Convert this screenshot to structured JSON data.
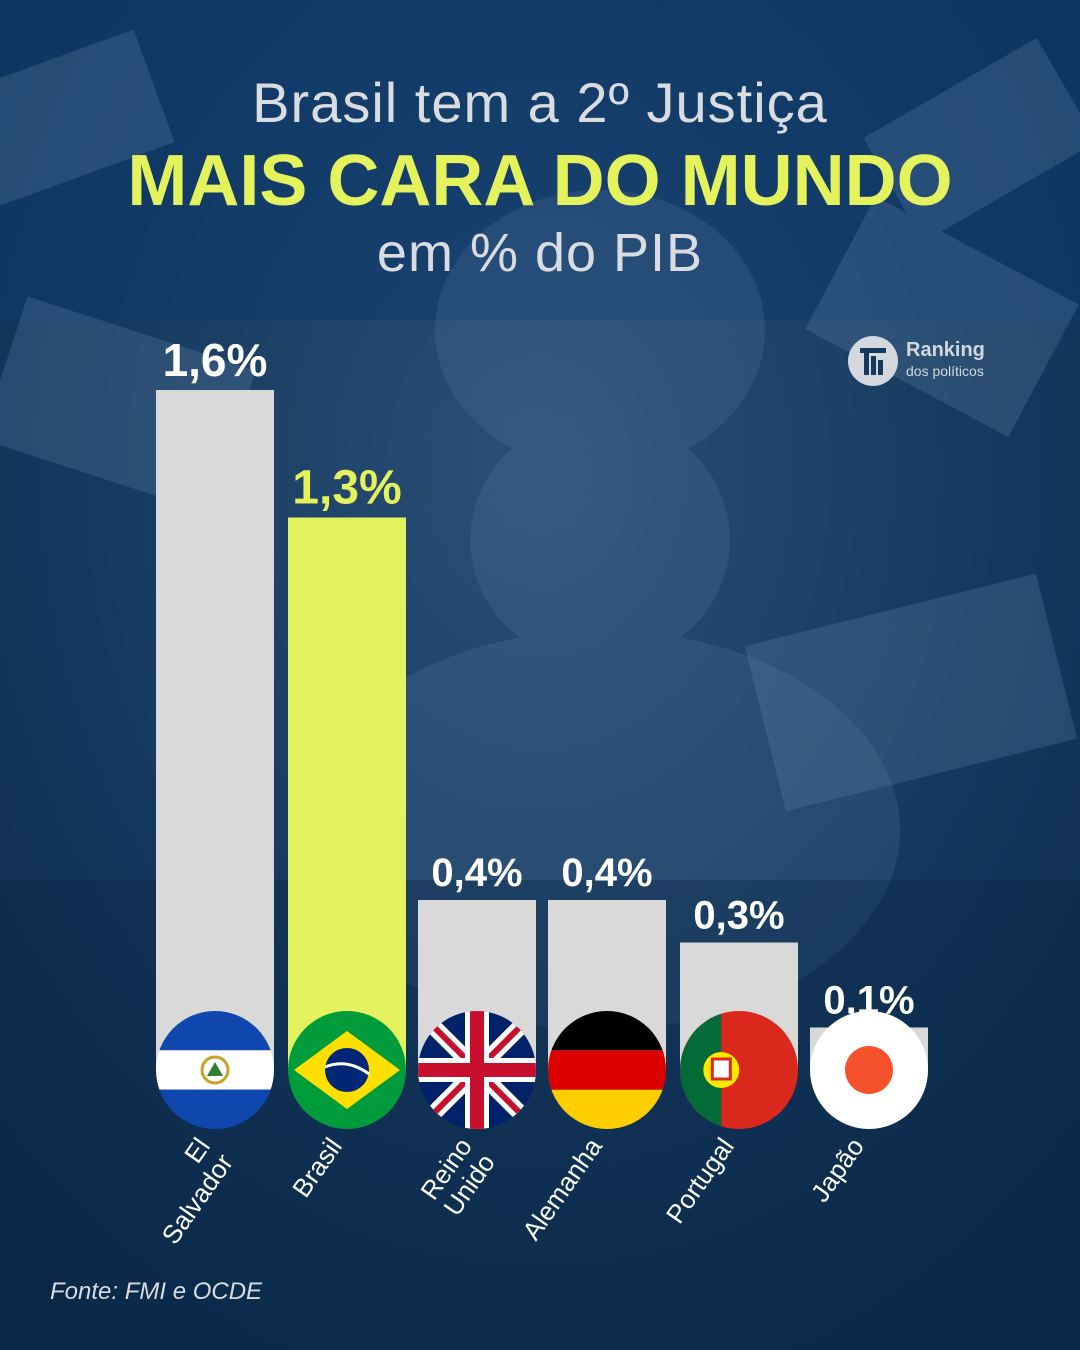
{
  "title": {
    "line1": "Brasil tem a 2º Justiça",
    "line2": "MAIS CARA DO MUNDO",
    "line3": "em % do PIB"
  },
  "logo": {
    "name": "Ranking",
    "subtitle": "dos políticos"
  },
  "source": "Fonte: FMI e OCDE",
  "colors": {
    "background": "#0f3762",
    "bar": "#d9d9d9",
    "highlight": "#e4f25e",
    "text": "#ffffff"
  },
  "chart_data": {
    "type": "bar",
    "title": "Brasil tem a 2º Justiça MAIS CARA DO MUNDO em % do PIB",
    "unit": "% do PIB",
    "categories": [
      "El Salvador",
      "Brasil",
      "Reino Unido",
      "Alemanha",
      "Portugal",
      "Japão"
    ],
    "category_lines": [
      [
        "El",
        "Salvador"
      ],
      [
        "Brasil"
      ],
      [
        "Reino",
        "Unido"
      ],
      [
        "Alemanha"
      ],
      [
        "Portugal"
      ],
      [
        "Japão"
      ]
    ],
    "values": [
      1.6,
      1.3,
      0.4,
      0.4,
      0.3,
      0.1
    ],
    "value_labels": [
      "1,6%",
      "1,3%",
      "0,4%",
      "0,4%",
      "0,3%",
      "0,1%"
    ],
    "flags": [
      "el-salvador-flag",
      "brazil-flag",
      "uk-flag",
      "germany-flag",
      "portugal-flag",
      "japan-flag"
    ],
    "highlight_index": 1,
    "ylim": [
      0,
      1.6
    ],
    "grid": false,
    "legend": "none"
  }
}
